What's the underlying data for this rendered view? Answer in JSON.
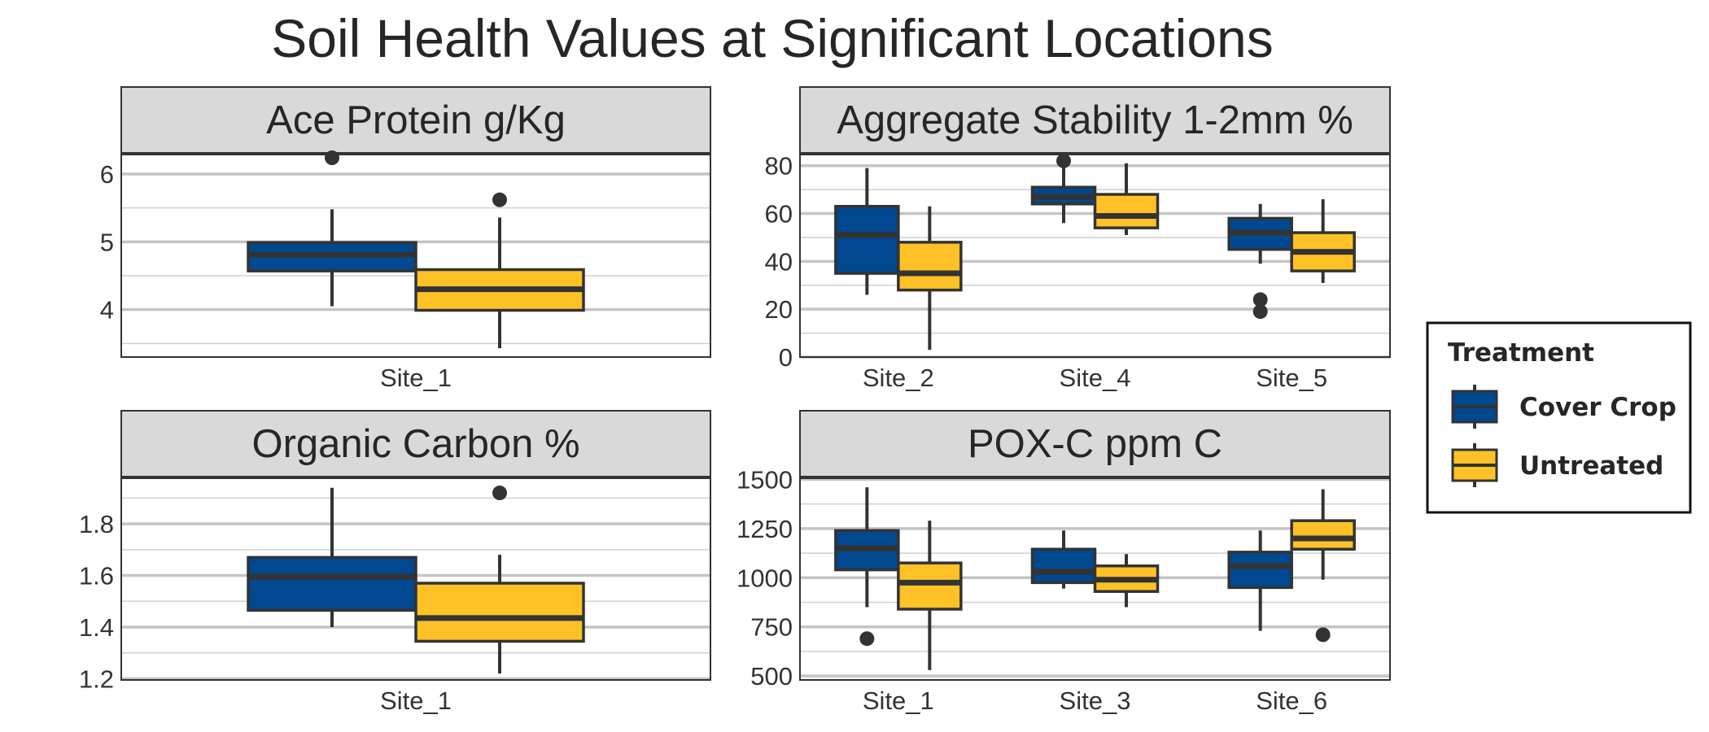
{
  "chart_data": {
    "type": "box",
    "title": "Soil Health Values at Significant Locations",
    "colors": {
      "Cover Crop": "#00488f",
      "Untreated": "#fec227",
      "outline": "#333333",
      "strip": "#d9d9d9"
    },
    "legend": {
      "title": "Treatment",
      "position": "right",
      "entries": [
        "Cover Crop",
        "Untreated"
      ]
    },
    "facets": [
      {
        "strip": "Ace Protein g/Kg",
        "ylim": [
          3.3,
          6.3
        ],
        "yticks": [
          4,
          5,
          6
        ],
        "minor": [
          3.5,
          4.5,
          5.5
        ],
        "categories": [
          "Site_1"
        ],
        "boxes": [
          {
            "site": "Site_1",
            "treatment": "Cover Crop",
            "min": 4.05,
            "q1": 4.57,
            "median": 4.81,
            "q3": 4.99,
            "max": 5.48,
            "outliers": [
              6.24
            ]
          },
          {
            "site": "Site_1",
            "treatment": "Untreated",
            "min": 3.43,
            "q1": 3.99,
            "median": 4.3,
            "q3": 4.59,
            "max": 5.36,
            "outliers": [
              5.62
            ]
          }
        ]
      },
      {
        "strip": "Aggregate Stability 1-2mm %",
        "ylim": [
          0,
          85
        ],
        "yticks": [
          0,
          20,
          40,
          60,
          80
        ],
        "minor": [
          10,
          30,
          50,
          70
        ],
        "categories": [
          "Site_2",
          "Site_4",
          "Site_5"
        ],
        "boxes": [
          {
            "site": "Site_2",
            "treatment": "Cover Crop",
            "min": 26,
            "q1": 35,
            "median": 51,
            "q3": 63,
            "max": 79,
            "outliers": []
          },
          {
            "site": "Site_2",
            "treatment": "Untreated",
            "min": 3,
            "q1": 28,
            "median": 35,
            "q3": 48,
            "max": 63,
            "outliers": []
          },
          {
            "site": "Site_4",
            "treatment": "Cover Crop",
            "min": 56,
            "q1": 64,
            "median": 67,
            "q3": 71,
            "max": 81,
            "outliers": [
              82
            ]
          },
          {
            "site": "Site_4",
            "treatment": "Untreated",
            "min": 51,
            "q1": 54,
            "median": 59,
            "q3": 68,
            "max": 81,
            "outliers": []
          },
          {
            "site": "Site_5",
            "treatment": "Cover Crop",
            "min": 39,
            "q1": 45,
            "median": 52,
            "q3": 58,
            "max": 64,
            "outliers": [
              24,
              19
            ]
          },
          {
            "site": "Site_5",
            "treatment": "Untreated",
            "min": 31,
            "q1": 36,
            "median": 44,
            "q3": 52,
            "max": 66,
            "outliers": []
          }
        ]
      },
      {
        "strip": "Organic Carbon %",
        "ylim": [
          1.195,
          1.98
        ],
        "yticks": [
          1.2,
          1.4,
          1.6,
          1.8
        ],
        "minor": [
          1.3,
          1.5,
          1.7,
          1.9
        ],
        "categories": [
          "Site_1"
        ],
        "boxes": [
          {
            "site": "Site_1",
            "treatment": "Cover Crop",
            "min": 1.4,
            "q1": 1.465,
            "median": 1.595,
            "q3": 1.67,
            "max": 1.94,
            "outliers": []
          },
          {
            "site": "Site_1",
            "treatment": "Untreated",
            "min": 1.22,
            "q1": 1.345,
            "median": 1.435,
            "q3": 1.57,
            "max": 1.68,
            "outliers": [
              1.92
            ]
          }
        ]
      },
      {
        "strip": "POX-C ppm C",
        "ylim": [
          480,
          1510
        ],
        "yticks": [
          500,
          750,
          1000,
          1250,
          1500
        ],
        "minor": [
          625,
          875,
          1125,
          1375
        ],
        "categories": [
          "Site_1",
          "Site_3",
          "Site_6"
        ],
        "boxes": [
          {
            "site": "Site_1",
            "treatment": "Cover Crop",
            "min": 850,
            "q1": 1040,
            "median": 1150,
            "q3": 1240,
            "max": 1460,
            "outliers": [
              690
            ]
          },
          {
            "site": "Site_1",
            "treatment": "Untreated",
            "min": 530,
            "q1": 840,
            "median": 975,
            "q3": 1075,
            "max": 1290,
            "outliers": []
          },
          {
            "site": "Site_3",
            "treatment": "Cover Crop",
            "min": 945,
            "q1": 975,
            "median": 1030,
            "q3": 1145,
            "max": 1240,
            "outliers": []
          },
          {
            "site": "Site_3",
            "treatment": "Untreated",
            "min": 850,
            "q1": 930,
            "median": 990,
            "q3": 1060,
            "max": 1120,
            "outliers": []
          },
          {
            "site": "Site_6",
            "treatment": "Cover Crop",
            "min": 730,
            "q1": 950,
            "median": 1060,
            "q3": 1130,
            "max": 1240,
            "outliers": []
          },
          {
            "site": "Site_6",
            "treatment": "Untreated",
            "min": 990,
            "q1": 1145,
            "median": 1200,
            "q3": 1290,
            "max": 1450,
            "outliers": [
              710
            ]
          }
        ]
      }
    ]
  }
}
